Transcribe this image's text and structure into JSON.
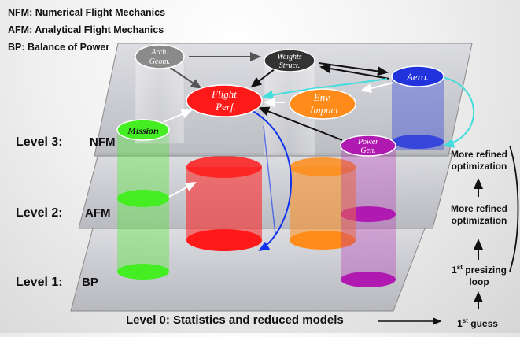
{
  "legend": {
    "nfm": "NFM: Numerical Flight Mechanics",
    "afm": "AFM: Analytical Flight Mechanics",
    "bp": "BP: Balance of Power"
  },
  "levels": [
    {
      "label": "Level 3:",
      "tag": "NFM"
    },
    {
      "label": "Level 2:",
      "tag": "AFM"
    },
    {
      "label": "Level 1:",
      "tag": "BP"
    },
    {
      "label": "Level 0: Statistics and reduced models"
    }
  ],
  "nodes": {
    "arch_geom": {
      "line1": "Arch.",
      "line2": "Geom."
    },
    "weights": {
      "line1": "Weights",
      "line2": "Struct."
    },
    "aero": {
      "line1": "Aero."
    },
    "flight_perf": {
      "line1": "Flight",
      "line2": "Perf."
    },
    "env_impact": {
      "line1": "Env.",
      "line2": "Impact"
    },
    "mission": {
      "line1": "Mission"
    },
    "power_gen": {
      "line1": "Power",
      "line2": "Gen."
    }
  },
  "loop_notes": {
    "refined1_line1": "More refined",
    "refined1_line2": "optimization",
    "refined2_line1": "More refined",
    "refined2_line2": "optimization",
    "presizing_num": "1",
    "presizing_sup": "st",
    "presizing_rest": "presizing",
    "presizing_line2": "loop",
    "guess_num": "1",
    "guess_sup": "st",
    "guess_rest": "guess"
  },
  "colors": {
    "mission": "#44ee22",
    "flight_perf": "#ff1a1a",
    "env_impact": "#ff8c1a",
    "aero": "#2233dd",
    "power_gen": "#b01ab0",
    "arch_geom": "#8a8a8a",
    "weights": "#333333",
    "arrow_cyan": "#44dddd",
    "arrow_blue": "#1133ee"
  }
}
